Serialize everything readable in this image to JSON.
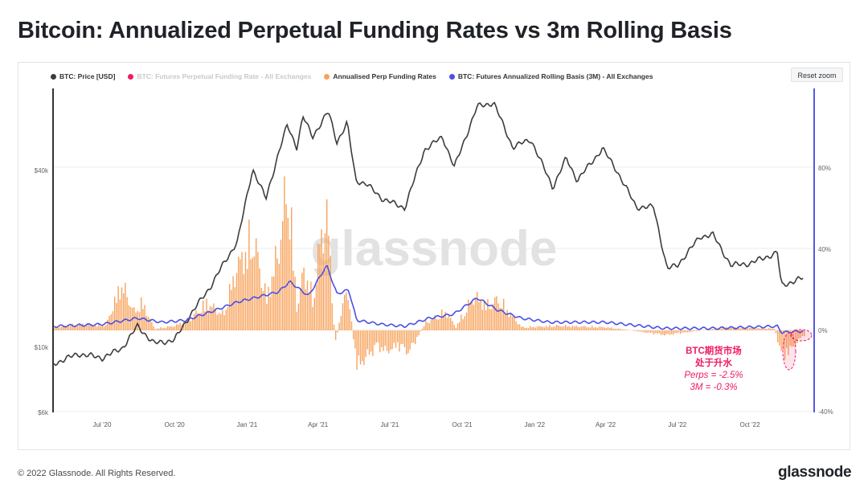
{
  "title": "Bitcoin: Annualized Perpetual Funding Rates vs 3m Rolling Basis",
  "reset_zoom": "Reset zoom",
  "watermark": "glassnode",
  "footer": {
    "copyright": "© 2022 Glassnode. All Rights Reserved.",
    "brand": "glassnode"
  },
  "legend": [
    {
      "label": "BTC: Price [USD]",
      "color": "#3c3c3c",
      "muted": false
    },
    {
      "label": "BTC: Futures Perpetual Funding Rate - All Exchanges",
      "color": "#ef1b66",
      "muted": true
    },
    {
      "label": "Annualised Perp Funding Rates",
      "color": "#f7a35c",
      "muted": false
    },
    {
      "label": "BTC: Futures Annualized Rolling Basis (3M) - All Exchanges",
      "color": "#4b50e6",
      "muted": false
    }
  ],
  "annotation": {
    "line1": "BTC期货市场",
    "line2": "处于升水",
    "line3": "Perps = -2.5%",
    "line4": "3M = -0.3%"
  },
  "chart_data": {
    "type": "line",
    "x_ticks": [
      "Jul '20",
      "Oct '20",
      "Jan '21",
      "Apr '21",
      "Jul '21",
      "Oct '21",
      "Jan '22",
      "Apr '22",
      "Jul '22",
      "Oct '22"
    ],
    "y_left_ticks": [
      "$6k",
      "$10k",
      "$40k"
    ],
    "y_left_scale": "log",
    "y_right_ticks": [
      "-40%",
      "0%",
      "40%",
      "80%"
    ],
    "y_right_range": [
      -40,
      100
    ],
    "series": [
      {
        "name": "BTC: Price [USD]",
        "axis": "left",
        "color": "#3c3c3c",
        "points": [
          [
            "2020-05-01",
            8800
          ],
          [
            "2020-06-01",
            9500
          ],
          [
            "2020-07-01",
            9200
          ],
          [
            "2020-07-26",
            9900
          ],
          [
            "2020-08-15",
            11800
          ],
          [
            "2020-09-05",
            10300
          ],
          [
            "2020-10-01",
            10600
          ],
          [
            "2020-10-21",
            12900
          ],
          [
            "2020-11-15",
            16000
          ],
          [
            "2020-12-01",
            19000
          ],
          [
            "2020-12-20",
            23000
          ],
          [
            "2021-01-08",
            40500
          ],
          [
            "2021-01-25",
            32000
          ],
          [
            "2021-02-10",
            46000
          ],
          [
            "2021-02-21",
            57000
          ],
          [
            "2021-03-05",
            48000
          ],
          [
            "2021-03-13",
            61000
          ],
          [
            "2021-03-25",
            52000
          ],
          [
            "2021-04-14",
            63500
          ],
          [
            "2021-04-25",
            50000
          ],
          [
            "2021-05-08",
            58000
          ],
          [
            "2021-05-19",
            37000
          ],
          [
            "2021-06-01",
            36000
          ],
          [
            "2021-06-22",
            32000
          ],
          [
            "2021-07-20",
            29800
          ],
          [
            "2021-08-14",
            47000
          ],
          [
            "2021-09-06",
            52000
          ],
          [
            "2021-09-21",
            41000
          ],
          [
            "2021-10-20",
            66000
          ],
          [
            "2021-11-10",
            68000
          ],
          [
            "2021-12-04",
            48000
          ],
          [
            "2021-12-27",
            51000
          ],
          [
            "2022-01-24",
            35000
          ],
          [
            "2022-02-10",
            44000
          ],
          [
            "2022-02-24",
            37000
          ],
          [
            "2022-03-28",
            47500
          ],
          [
            "2022-04-15",
            40000
          ],
          [
            "2022-05-10",
            30000
          ],
          [
            "2022-06-01",
            30000
          ],
          [
            "2022-06-18",
            18500
          ],
          [
            "2022-07-01",
            19000
          ],
          [
            "2022-07-30",
            23800
          ],
          [
            "2022-08-15",
            24200
          ],
          [
            "2022-09-07",
            19000
          ],
          [
            "2022-10-01",
            19300
          ],
          [
            "2022-11-05",
            21000
          ],
          [
            "2022-11-10",
            16200
          ],
          [
            "2022-12-01",
            17000
          ],
          [
            "2022-12-09",
            17200
          ]
        ]
      },
      {
        "name": "BTC: Futures Annualized Rolling Basis (3M) - All Exchanges",
        "axis": "right",
        "color": "#4b50e6",
        "points": [
          [
            "2020-05-01",
            2
          ],
          [
            "2020-07-01",
            3
          ],
          [
            "2020-08-15",
            6
          ],
          [
            "2020-09-15",
            4
          ],
          [
            "2020-10-15",
            5
          ],
          [
            "2020-11-15",
            9
          ],
          [
            "2020-12-20",
            14
          ],
          [
            "2021-01-10",
            16
          ],
          [
            "2021-02-10",
            19
          ],
          [
            "2021-02-24",
            24
          ],
          [
            "2021-03-20",
            17
          ],
          [
            "2021-04-12",
            32
          ],
          [
            "2021-04-25",
            18
          ],
          [
            "2021-05-10",
            20
          ],
          [
            "2021-05-20",
            5
          ],
          [
            "2021-06-20",
            3
          ],
          [
            "2021-07-20",
            2
          ],
          [
            "2021-08-20",
            6
          ],
          [
            "2021-09-20",
            8
          ],
          [
            "2021-10-20",
            16
          ],
          [
            "2021-11-15",
            10
          ],
          [
            "2021-12-15",
            6
          ],
          [
            "2022-01-20",
            4
          ],
          [
            "2022-04-01",
            4
          ],
          [
            "2022-06-15",
            1
          ],
          [
            "2022-08-15",
            1
          ],
          [
            "2022-11-05",
            2
          ],
          [
            "2022-11-10",
            -1
          ],
          [
            "2022-12-09",
            -0.3
          ]
        ]
      },
      {
        "name": "Annualised Perp Funding Rates",
        "axis": "right",
        "type": "bar",
        "color": "#f7a35c",
        "points": [
          [
            "2020-05-01",
            2
          ],
          [
            "2020-06-01",
            4
          ],
          [
            "2020-07-05",
            3
          ],
          [
            "2020-07-25",
            30
          ],
          [
            "2020-08-10",
            12
          ],
          [
            "2020-08-20",
            18
          ],
          [
            "2020-09-05",
            1
          ],
          [
            "2020-10-01",
            3
          ],
          [
            "2020-10-20",
            7
          ],
          [
            "2020-11-10",
            18
          ],
          [
            "2020-12-01",
            10
          ],
          [
            "2020-12-18",
            40
          ],
          [
            "2021-01-08",
            60
          ],
          [
            "2021-01-25",
            20
          ],
          [
            "2021-02-06",
            45
          ],
          [
            "2021-02-15",
            70
          ],
          [
            "2021-02-20",
            102
          ],
          [
            "2021-03-05",
            12
          ],
          [
            "2021-03-13",
            40
          ],
          [
            "2021-03-25",
            20
          ],
          [
            "2021-04-05",
            65
          ],
          [
            "2021-04-13",
            72
          ],
          [
            "2021-04-22",
            -10
          ],
          [
            "2021-05-02",
            20
          ],
          [
            "2021-05-10",
            22
          ],
          [
            "2021-05-19",
            -24
          ],
          [
            "2021-06-15",
            -10
          ],
          [
            "2021-06-25",
            -14
          ],
          [
            "2021-07-10",
            -10
          ],
          [
            "2021-07-25",
            -14
          ],
          [
            "2021-08-15",
            5
          ],
          [
            "2021-09-10",
            12
          ],
          [
            "2021-09-22",
            2
          ],
          [
            "2021-10-15",
            22
          ],
          [
            "2021-11-01",
            16
          ],
          [
            "2021-11-15",
            20
          ],
          [
            "2021-12-15",
            2
          ],
          [
            "2022-02-01",
            3
          ],
          [
            "2022-04-01",
            2
          ],
          [
            "2022-06-15",
            -3
          ],
          [
            "2022-09-01",
            2
          ],
          [
            "2022-11-01",
            1
          ],
          [
            "2022-11-10",
            -17
          ],
          [
            "2022-11-20",
            -13
          ],
          [
            "2022-12-09",
            -2.5
          ]
        ]
      }
    ]
  }
}
